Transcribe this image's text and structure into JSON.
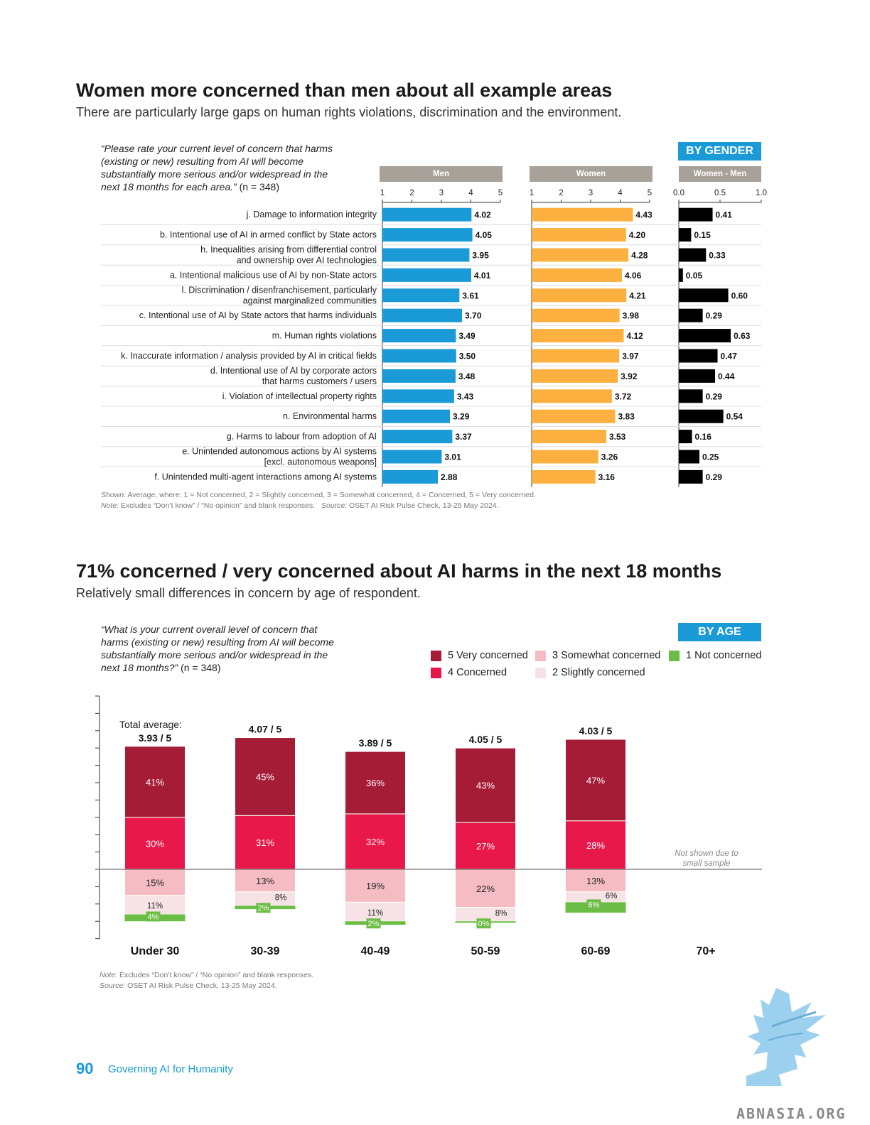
{
  "section1": {
    "title": "Women more concerned than men about all example areas",
    "subtitle": "There are particularly large gaps on human rights violations, discrimination and the environment.",
    "question": "“Please rate your current level of concern that harms (existing or new) resulting from AI will become substantially more serious and/or widespread in the next 18 months for each area.”",
    "sample": "(n = 348)",
    "badge": "BY GENDER",
    "note_shown_label": "Shown:",
    "note_shown": "Average, where: 1 = Not concerned, 2 = Slightly concerned, 3 = Somewhat concerned, 4 = Concerned, 5 = Very concerned.",
    "note_label": "Note:",
    "note": "Excludes “Don’t know” / “No opinion” and blank responses.",
    "source_label": "Source:",
    "source": "OSET AI Risk Pulse Check, 13-25 May 2024."
  },
  "section2": {
    "title": "71% concerned / very concerned about AI harms in the next 18 months",
    "subtitle": "Relatively small differences in concern by age of respondent.",
    "question": "“What is your current overall level of concern that harms (existing or new) resulting from AI will become substantially more serious and/or widespread in the next 18 months?”",
    "sample": "(n = 348)",
    "badge": "BY AGE",
    "total_avg_label": "Total average:",
    "not_shown": "Not shown due to small sample",
    "note_label": "Note:",
    "note": "Excludes “Don’t know” / “No opinion” and blank responses.",
    "source_label": "Source:",
    "source": "OSET AI Risk Pulse Check, 13-25 May 2024."
  },
  "footer": {
    "page_number": "90",
    "text": "Governing AI for Humanity"
  },
  "watermark": {
    "text": "ABNASIA.ORG"
  },
  "colors": {
    "men": "#1a9ad7",
    "women": "#fbb040",
    "diff": "#000000",
    "very": "#a51c36",
    "concerned": "#e8184a",
    "somewhat": "#f5bcc4",
    "slightly": "#f7e3e5",
    "not": "#6cbd45",
    "badge": "#1a9ad7",
    "panel_head": "#a8a19a"
  },
  "chart_data": [
    {
      "type": "bar",
      "orientation": "horizontal",
      "categories": [
        "j. Damage to information integrity",
        "b. Intentional use of AI in armed conflict by State actors",
        "h. Inequalities arising from differential control and ownership over AI technologies",
        "a. Intentional malicious use of AI by non-State actors",
        "l. Discrimination / disenfranchisement, particularly against marginalized communities",
        "c. Intentional use of AI by State actors that harms individuals",
        "m. Human rights violations",
        "k. Inaccurate information / analysis provided by AI in critical fields",
        "d. Intentional use of AI by corporate actors that harms customers / users",
        "i. Violation of intellectual property rights",
        "n. Environmental harms",
        "g. Harms to labour from adoption of AI",
        "e. Unintended autonomous actions by AI systems [excl. autonomous weapons]",
        "f. Unintended multi-agent interactions among AI systems"
      ],
      "category_lines": [
        [
          "j. Damage to information integrity"
        ],
        [
          "b. Intentional use of AI in armed conflict by State actors"
        ],
        [
          "h. Inequalities arising from differential control",
          "and ownership over AI technologies"
        ],
        [
          "a. Intentional malicious use of AI by non-State actors"
        ],
        [
          "l. Discrimination / disenfranchisement, particularly",
          "against marginalized communities"
        ],
        [
          "c. Intentional use of AI by State actors that harms individuals"
        ],
        [
          "m. Human rights violations"
        ],
        [
          "k. Inaccurate information / analysis provided by AI in critical fields"
        ],
        [
          "d. Intentional use of AI by corporate actors",
          "that harms customers / users"
        ],
        [
          "i. Violation of intellectual property rights"
        ],
        [
          "n. Environmental harms"
        ],
        [
          "g. Harms to labour from adoption of AI"
        ],
        [
          "e. Unintended autonomous actions by AI systems",
          "[excl. autonomous weapons]"
        ],
        [
          "f. Unintended multi-agent interactions among AI systems"
        ]
      ],
      "series": [
        {
          "name": "Men",
          "values": [
            4.02,
            4.05,
            3.95,
            4.01,
            3.61,
            3.7,
            3.49,
            3.5,
            3.48,
            3.43,
            3.29,
            3.37,
            3.01,
            2.88
          ],
          "xlim": [
            1,
            5
          ],
          "ticks": [
            1,
            2,
            3,
            4,
            5
          ]
        },
        {
          "name": "Women",
          "values": [
            4.43,
            4.2,
            4.28,
            4.06,
            4.21,
            3.98,
            4.12,
            3.97,
            3.92,
            3.72,
            3.83,
            3.53,
            3.26,
            3.16
          ],
          "xlim": [
            1,
            5
          ],
          "ticks": [
            1,
            2,
            3,
            4,
            5
          ]
        },
        {
          "name": "Women - Men",
          "values": [
            0.41,
            0.15,
            0.33,
            0.05,
            0.6,
            0.29,
            0.63,
            0.47,
            0.44,
            0.29,
            0.54,
            0.16,
            0.25,
            0.29
          ],
          "xlim": [
            0,
            1
          ],
          "ticks": [
            "0.0",
            "0.5",
            "1.0"
          ]
        }
      ]
    },
    {
      "type": "bar",
      "stacked": true,
      "diverging": true,
      "categories": [
        "Under 30",
        "30-39",
        "40-49",
        "50-59",
        "60-69",
        "70+"
      ],
      "averages": [
        "3.93 / 5",
        "4.07 / 5",
        "3.89 / 5",
        "4.05 / 5",
        "4.03 / 5",
        null
      ],
      "series": [
        {
          "name": "5 Very concerned",
          "values": [
            41,
            45,
            36,
            43,
            47,
            null
          ]
        },
        {
          "name": "4 Concerned",
          "values": [
            30,
            31,
            32,
            27,
            28,
            null
          ]
        },
        {
          "name": "3 Somewhat concerned",
          "values": [
            15,
            13,
            19,
            22,
            13,
            null
          ]
        },
        {
          "name": "2 Slightly concerned",
          "values": [
            11,
            8,
            11,
            8,
            6,
            null
          ]
        },
        {
          "name": "1 Not concerned",
          "values": [
            4,
            2,
            2,
            0,
            6,
            null
          ]
        }
      ],
      "legend": [
        "5 Very concerned",
        "3 Somewhat concerned",
        "1 Not concerned",
        "4 Concerned",
        "2 Slightly concerned"
      ]
    }
  ]
}
